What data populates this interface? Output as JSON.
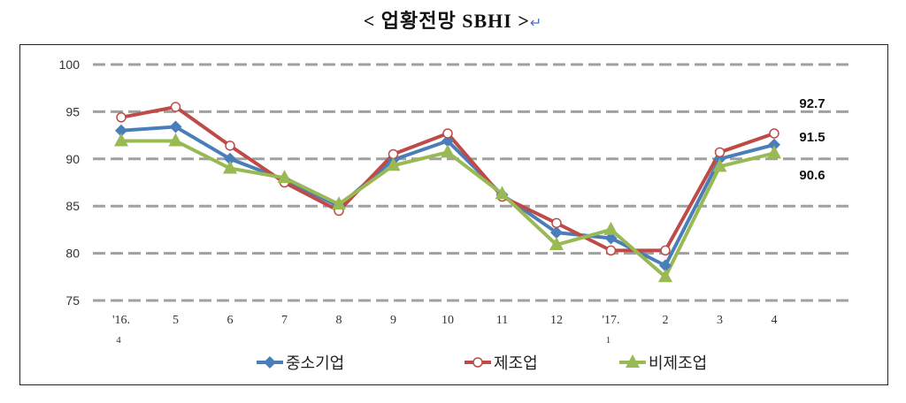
{
  "title": "< 업황전망 SBHI >",
  "return_mark": "↵",
  "chart_data": {
    "type": "line",
    "title": "< 업황전망 SBHI >",
    "categories": [
      "'16.\n4",
      "5",
      "6",
      "7",
      "8",
      "9",
      "10",
      "11",
      "12",
      "'17.\n1",
      "2",
      "3",
      "4"
    ],
    "category_lines": [
      [
        "'16.",
        "4"
      ],
      [
        "5"
      ],
      [
        "6"
      ],
      [
        "7"
      ],
      [
        "8"
      ],
      [
        "9"
      ],
      [
        "10"
      ],
      [
        "11"
      ],
      [
        "12"
      ],
      [
        "'17.",
        "1"
      ],
      [
        "2"
      ],
      [
        "3"
      ],
      [
        "4"
      ]
    ],
    "ylim": [
      75,
      100
    ],
    "yticks": [
      75,
      80,
      85,
      90,
      95,
      100
    ],
    "grid": true,
    "legend": "bottom",
    "series": [
      {
        "name": "중소기업",
        "color": "#4a7ebb",
        "marker": "diamond",
        "values": [
          93.0,
          93.4,
          90.0,
          87.8,
          85.0,
          89.9,
          91.9,
          86.2,
          82.2,
          81.6,
          78.7,
          90.0,
          91.5
        ]
      },
      {
        "name": "제조업",
        "color": "#be4b48",
        "marker": "circle",
        "values": [
          94.4,
          95.5,
          91.4,
          87.5,
          84.5,
          90.5,
          92.7,
          86.0,
          83.2,
          80.3,
          80.3,
          90.7,
          92.7
        ]
      },
      {
        "name": "비제조업",
        "color": "#98b954",
        "marker": "triangle",
        "values": [
          91.9,
          91.9,
          89.0,
          88.0,
          85.2,
          89.3,
          90.7,
          86.3,
          80.9,
          82.5,
          77.5,
          89.2,
          90.6
        ]
      }
    ],
    "annotations": [
      "92.7",
      "91.5",
      "90.6"
    ]
  }
}
